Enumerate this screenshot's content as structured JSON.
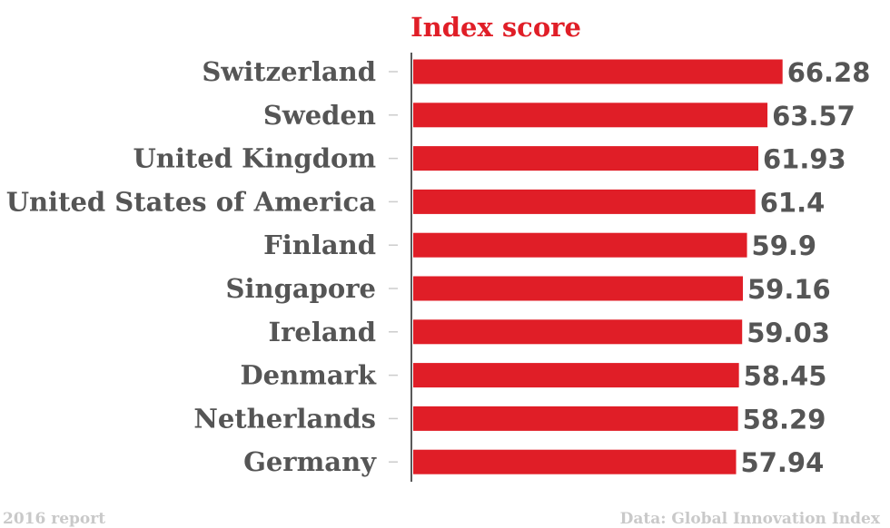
{
  "chart_data": {
    "type": "bar",
    "orientation": "horizontal",
    "title": "Index score",
    "categories": [
      "Switzerland",
      "Sweden",
      "United Kingdom",
      "United States of America",
      "Finland",
      "Singapore",
      "Ireland",
      "Denmark",
      "Netherlands",
      "Germany"
    ],
    "values": [
      66.28,
      63.57,
      61.93,
      61.4,
      59.9,
      59.16,
      59.03,
      58.45,
      58.29,
      57.94
    ],
    "value_labels": [
      "66.28",
      "63.57",
      "61.93",
      "61.4",
      "59.9",
      "59.16",
      "59.03",
      "58.45",
      "58.29",
      "57.94"
    ],
    "xlim": [
      0,
      73.5
    ],
    "grid": false,
    "legend": "none",
    "bar_color": "#e01e27",
    "text_color": "#555555",
    "title_color": "#e01e27"
  },
  "footer": {
    "left": "2016 report",
    "right": "Data: Global Innovation Index"
  }
}
